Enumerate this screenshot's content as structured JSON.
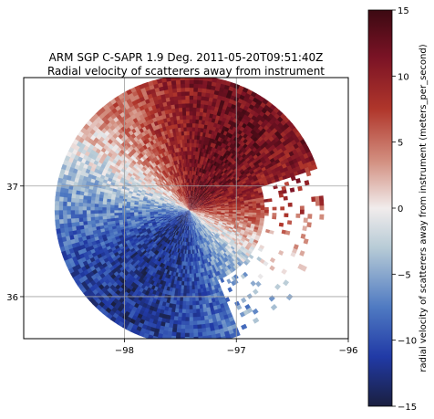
{
  "chart_data": {
    "type": "heatmap",
    "title_line1": "ARM SGP C-SAPR 1.9 Deg. 2011-05-20T09:51:40Z",
    "title_line2": "Radial velocity of scatterers away from instrument",
    "x_ticks": [
      -98,
      -97,
      -96
    ],
    "x_tick_labels": [
      "−98",
      "−97",
      "−96"
    ],
    "y_ticks": [
      36,
      37
    ],
    "y_tick_labels": [
      "36",
      "37"
    ],
    "xlim": [
      -98.9,
      -96.0
    ],
    "ylim": [
      35.62,
      37.98
    ],
    "grid": true,
    "colorbar": {
      "label": "radial velocity of scatterers away from instrument (meters_per_second)",
      "vmin": -15,
      "vmax": 15,
      "ticks": [
        -15,
        -10,
        -5,
        0,
        5,
        10,
        15
      ],
      "tick_labels": [
        "−15",
        "−10",
        "−5",
        "0",
        "5",
        "10",
        "15"
      ],
      "colormap": "balance",
      "colors": [
        "#1a1f3f",
        "#213aa6",
        "#4f7ac2",
        "#b7cbd6",
        "#f1ecec",
        "#d28e7f",
        "#b0362b",
        "#7b1325",
        "#3c0912"
      ]
    },
    "radar": {
      "center_lon": -97.42,
      "center_lat": 36.78,
      "max_range_deg": 1.2
    }
  }
}
